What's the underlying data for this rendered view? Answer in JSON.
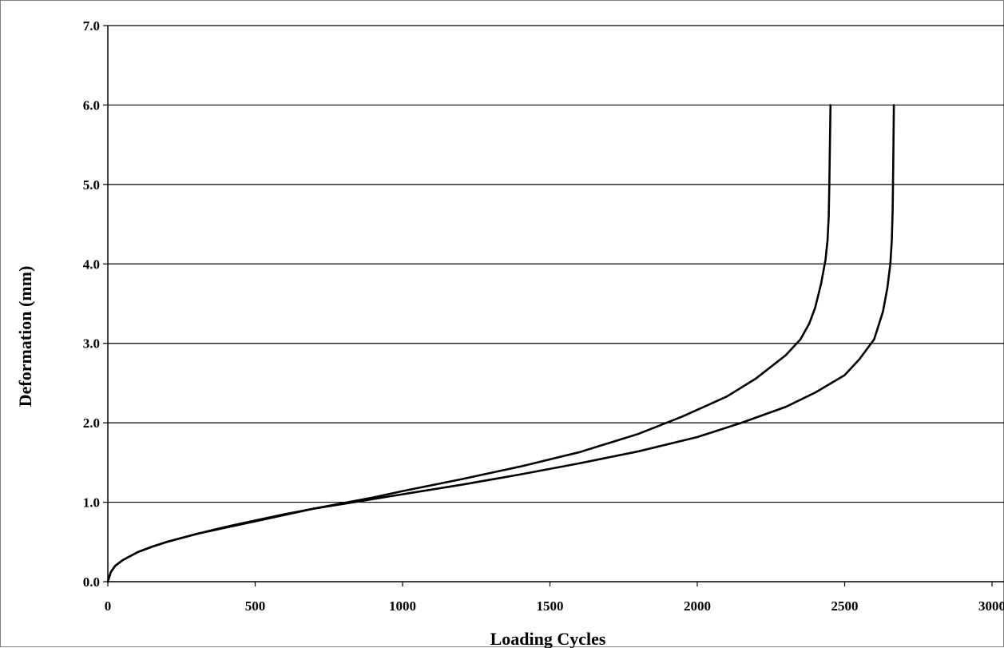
{
  "chart_data": {
    "type": "line",
    "title": "",
    "xlabel": "Loading Cycles",
    "ylabel": "Deformation (mm)",
    "xlim": [
      0,
      3000
    ],
    "ylim": [
      0,
      7
    ],
    "x_ticks": [
      "0",
      "500",
      "1000",
      "1500",
      "2000",
      "2500",
      "3000"
    ],
    "y_ticks": [
      "0.0",
      "1.0",
      "2.0",
      "3.0",
      "4.0",
      "5.0",
      "6.0",
      "7.0"
    ],
    "grid": "horizontal",
    "legend": "none",
    "line_color": "#000000",
    "series": [
      {
        "x": [
          0,
          10,
          25,
          50,
          100,
          150,
          200,
          300,
          400,
          500,
          600,
          700,
          800,
          900,
          1000,
          1200,
          1400,
          1600,
          1800,
          1950,
          2100,
          2200,
          2300,
          2350,
          2380,
          2400,
          2420,
          2435,
          2442,
          2446,
          2448,
          2450,
          2452
        ],
        "y": [
          0,
          0.12,
          0.2,
          0.27,
          0.37,
          0.44,
          0.5,
          0.6,
          0.68,
          0.76,
          0.84,
          0.92,
          0.99,
          1.06,
          1.14,
          1.29,
          1.45,
          1.63,
          1.86,
          2.08,
          2.33,
          2.56,
          2.85,
          3.05,
          3.25,
          3.45,
          3.75,
          4.05,
          4.3,
          4.6,
          5.0,
          5.5,
          6.0
        ]
      },
      {
        "x": [
          0,
          10,
          25,
          50,
          100,
          150,
          200,
          300,
          400,
          500,
          600,
          700,
          800,
          900,
          1000,
          1200,
          1400,
          1600,
          1800,
          2000,
          2150,
          2300,
          2400,
          2500,
          2550,
          2600,
          2630,
          2645,
          2655,
          2660,
          2663,
          2665,
          2667
        ],
        "y": [
          0,
          0.12,
          0.2,
          0.27,
          0.37,
          0.44,
          0.5,
          0.6,
          0.69,
          0.77,
          0.85,
          0.92,
          0.98,
          1.04,
          1.1,
          1.22,
          1.35,
          1.49,
          1.64,
          1.82,
          2.0,
          2.2,
          2.38,
          2.6,
          2.8,
          3.05,
          3.4,
          3.7,
          4.0,
          4.3,
          4.7,
          5.3,
          6.0
        ]
      }
    ]
  }
}
